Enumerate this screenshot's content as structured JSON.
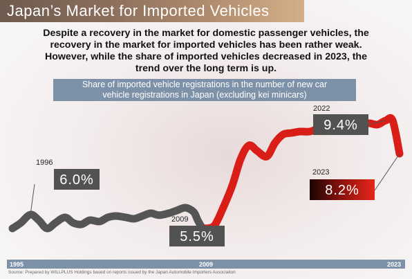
{
  "header": {
    "title": "Japan’s Market for Imported Vehicles"
  },
  "summary": {
    "lines": [
      "Despite a recovery in the market for domestic passenger vehicles, the",
      "recovery in the market for imported vehicles has been rather weak.",
      "However, while the share of imported vehicles decreased in 2023, the",
      "trend over the long term is up."
    ]
  },
  "chart_data": {
    "type": "line",
    "title": "Share of imported vehicle registrations in the number of new car vehicle registrations in Japan (excluding kei minicars)",
    "title_lines": [
      "Share of imported vehicle registrations in the number of new car",
      "vehicle registrations in Japan (excluding kei minicars)"
    ],
    "x_tick_labels": [
      "1995",
      "2009",
      "2023"
    ],
    "xlim": [
      1995,
      2023
    ],
    "ylim": [
      4.5,
      10.5
    ],
    "series": [
      {
        "color": "#555555",
        "x": [
          1995,
          1995.6,
          1996.3,
          1996.9,
          1997.5,
          1998.1,
          1998.8,
          1999.4,
          2000.0,
          2000.6,
          2001.3,
          2001.9,
          2002.5,
          2003.2,
          2003.8,
          2004.4,
          2005.0,
          2005.6,
          2006.3,
          2006.9,
          2007.5,
          2008.1,
          2008.4,
          2008.7,
          2009
        ],
        "values": [
          5.5,
          5.7,
          6.0,
          5.8,
          5.5,
          5.7,
          5.9,
          5.7,
          5.65,
          5.8,
          5.75,
          5.9,
          5.95,
          5.9,
          5.85,
          5.95,
          6.05,
          5.98,
          6.05,
          6.15,
          6.25,
          6.1,
          5.8,
          5.55,
          5.5
        ]
      },
      {
        "color": "#d81e16",
        "x": [
          2009,
          2009.6,
          2010.2,
          2010.9,
          2011.5,
          2012.1,
          2012.7,
          2013.4,
          2014.0,
          2014.6,
          2015.2,
          2015.8,
          2016.5,
          2017.1,
          2017.7,
          2018.3,
          2018.9,
          2019.6,
          2020.2,
          2020.8,
          2021.4,
          2022.0,
          2022.5,
          2023
        ],
        "values": [
          5.5,
          5.6,
          6.2,
          7.05,
          8.0,
          8.5,
          8.3,
          8.1,
          8.6,
          8.9,
          8.95,
          9.0,
          9.0,
          9.1,
          9.15,
          9.15,
          9.2,
          9.15,
          9.25,
          9.3,
          9.25,
          9.4,
          9.4,
          8.2
        ]
      }
    ],
    "annotations": [
      {
        "year_label": "1996",
        "value_label": "6.0%"
      },
      {
        "year_label": "2009",
        "value_label": "5.5%"
      },
      {
        "year_label": "2022",
        "value_label": "9.4%"
      },
      {
        "year_label": "2023",
        "value_label": "8.2%"
      }
    ],
    "grid": false,
    "legend": "none"
  },
  "source": "Source: Prepared by WILLPLUS Holdings based on reports issued by the Japan Automobile Importers Association"
}
